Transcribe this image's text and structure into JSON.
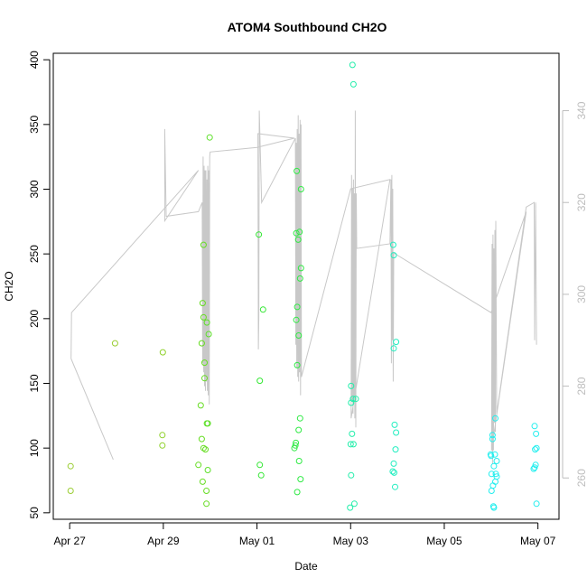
{
  "chart_data": {
    "type": "scatter",
    "title": "ATOM4 Southbound CH2O",
    "xlabel": "Date",
    "ylabel": "CH2O",
    "x_tick_labels": [
      "Apr 27",
      "Apr 29",
      "May 01",
      "May 03",
      "May 05",
      "May 07"
    ],
    "x_tick_values": [
      0,
      2,
      4,
      6,
      8,
      10
    ],
    "xlim": [
      -0.35,
      10.45
    ],
    "ylim": [
      45,
      405
    ],
    "y_ticks": [
      50,
      100,
      150,
      200,
      250,
      300,
      350,
      400
    ],
    "right_axis": {
      "ylim": [
        251.0,
        352.5
      ],
      "ticks": [
        260,
        280,
        300,
        320,
        340
      ],
      "color": "#bdbdbd"
    },
    "points": [
      {
        "x": 0.02,
        "y": 86,
        "color": "#9acd32"
      },
      {
        "x": 0.02,
        "y": 67,
        "color": "#9acd32"
      },
      {
        "x": 0.97,
        "y": 181,
        "color": "#9acd32"
      },
      {
        "x": 1.99,
        "y": 174,
        "color": "#8fd12a"
      },
      {
        "x": 1.98,
        "y": 110,
        "color": "#8fd12a"
      },
      {
        "x": 1.98,
        "y": 102,
        "color": "#8fd12a"
      },
      {
        "x": 2.75,
        "y": 87,
        "color": "#66dd22"
      },
      {
        "x": 2.8,
        "y": 133,
        "color": "#66dd22"
      },
      {
        "x": 2.82,
        "y": 107,
        "color": "#66dd22"
      },
      {
        "x": 2.82,
        "y": 181,
        "color": "#66dd22"
      },
      {
        "x": 2.84,
        "y": 212,
        "color": "#66dd22"
      },
      {
        "x": 2.86,
        "y": 257,
        "color": "#66dd22"
      },
      {
        "x": 2.86,
        "y": 201,
        "color": "#66dd22"
      },
      {
        "x": 2.86,
        "y": 100,
        "color": "#66dd22"
      },
      {
        "x": 2.84,
        "y": 74,
        "color": "#66dd22"
      },
      {
        "x": 2.88,
        "y": 166,
        "color": "#66dd22"
      },
      {
        "x": 2.88,
        "y": 154,
        "color": "#66dd22"
      },
      {
        "x": 2.9,
        "y": 99,
        "color": "#66dd22"
      },
      {
        "x": 2.92,
        "y": 67,
        "color": "#66dd22"
      },
      {
        "x": 2.92,
        "y": 57,
        "color": "#66dd22"
      },
      {
        "x": 2.93,
        "y": 197,
        "color": "#5ee02a"
      },
      {
        "x": 2.93,
        "y": 119,
        "color": "#5ee02a"
      },
      {
        "x": 2.95,
        "y": 119,
        "color": "#5ee02a"
      },
      {
        "x": 2.95,
        "y": 83,
        "color": "#5ee02a"
      },
      {
        "x": 2.97,
        "y": 188,
        "color": "#5ee02a"
      },
      {
        "x": 2.99,
        "y": 340,
        "color": "#5ee02a"
      },
      {
        "x": 4.04,
        "y": 265,
        "color": "#33e733"
      },
      {
        "x": 4.06,
        "y": 87,
        "color": "#33e733"
      },
      {
        "x": 4.06,
        "y": 152,
        "color": "#33e733"
      },
      {
        "x": 4.09,
        "y": 79,
        "color": "#33e733"
      },
      {
        "x": 4.13,
        "y": 207,
        "color": "#33e733"
      },
      {
        "x": 4.8,
        "y": 100,
        "color": "#2fea44"
      },
      {
        "x": 4.82,
        "y": 102,
        "color": "#2fea44"
      },
      {
        "x": 4.83,
        "y": 104,
        "color": "#2fea44"
      },
      {
        "x": 4.84,
        "y": 199,
        "color": "#2fea44"
      },
      {
        "x": 4.84,
        "y": 266,
        "color": "#2fea44"
      },
      {
        "x": 4.85,
        "y": 314,
        "color": "#2fea44"
      },
      {
        "x": 4.86,
        "y": 209,
        "color": "#2fea44"
      },
      {
        "x": 4.86,
        "y": 164,
        "color": "#2fea44"
      },
      {
        "x": 4.86,
        "y": 66,
        "color": "#2fea44"
      },
      {
        "x": 4.88,
        "y": 261,
        "color": "#2fea44"
      },
      {
        "x": 4.89,
        "y": 187,
        "color": "#2fea44"
      },
      {
        "x": 4.89,
        "y": 114,
        "color": "#2fea44"
      },
      {
        "x": 4.9,
        "y": 90,
        "color": "#2fea44"
      },
      {
        "x": 4.91,
        "y": 267,
        "color": "#2fea44"
      },
      {
        "x": 4.92,
        "y": 231,
        "color": "#2fea44"
      },
      {
        "x": 4.92,
        "y": 123,
        "color": "#2fea44"
      },
      {
        "x": 4.93,
        "y": 76,
        "color": "#2fea44"
      },
      {
        "x": 4.94,
        "y": 300,
        "color": "#2fea44"
      },
      {
        "x": 4.94,
        "y": 239,
        "color": "#2fea44"
      },
      {
        "x": 5.99,
        "y": 54,
        "color": "#22eeaa"
      },
      {
        "x": 6.0,
        "y": 103,
        "color": "#22eeaa"
      },
      {
        "x": 6.01,
        "y": 148,
        "color": "#22eeaa"
      },
      {
        "x": 6.01,
        "y": 135,
        "color": "#22eeaa"
      },
      {
        "x": 6.01,
        "y": 79,
        "color": "#22eeaa"
      },
      {
        "x": 6.03,
        "y": 111,
        "color": "#22eeaa"
      },
      {
        "x": 6.04,
        "y": 396,
        "color": "#22eeaa"
      },
      {
        "x": 6.05,
        "y": 138,
        "color": "#22eeaa"
      },
      {
        "x": 6.06,
        "y": 381,
        "color": "#22eeaa"
      },
      {
        "x": 6.06,
        "y": 103,
        "color": "#22eeaa"
      },
      {
        "x": 6.08,
        "y": 57,
        "color": "#22eeaa"
      },
      {
        "x": 6.11,
        "y": 138,
        "color": "#22eeaa"
      },
      {
        "x": 6.9,
        "y": 82,
        "color": "#22eec0"
      },
      {
        "x": 6.91,
        "y": 257,
        "color": "#22eec0"
      },
      {
        "x": 6.92,
        "y": 249,
        "color": "#22eec0"
      },
      {
        "x": 6.92,
        "y": 177,
        "color": "#22eec0"
      },
      {
        "x": 6.92,
        "y": 88,
        "color": "#22eec0"
      },
      {
        "x": 6.93,
        "y": 81,
        "color": "#22eec0"
      },
      {
        "x": 6.94,
        "y": 118,
        "color": "#22eec0"
      },
      {
        "x": 6.95,
        "y": 70,
        "color": "#22eec0"
      },
      {
        "x": 6.96,
        "y": 99,
        "color": "#22eec0"
      },
      {
        "x": 6.97,
        "y": 182,
        "color": "#22eec0"
      },
      {
        "x": 6.97,
        "y": 112,
        "color": "#22eec0"
      },
      {
        "x": 8.99,
        "y": 95,
        "color": "#22eeee"
      },
      {
        "x": 9.0,
        "y": 94,
        "color": "#22eeee"
      },
      {
        "x": 9.01,
        "y": 80,
        "color": "#22eeee"
      },
      {
        "x": 9.01,
        "y": 67,
        "color": "#22eeee"
      },
      {
        "x": 9.03,
        "y": 110,
        "color": "#22eeee"
      },
      {
        "x": 9.03,
        "y": 107,
        "color": "#22eeee"
      },
      {
        "x": 9.04,
        "y": 71,
        "color": "#22eeee"
      },
      {
        "x": 9.05,
        "y": 55,
        "color": "#22eeee"
      },
      {
        "x": 9.06,
        "y": 54,
        "color": "#22eeee"
      },
      {
        "x": 9.06,
        "y": 86,
        "color": "#22eeee"
      },
      {
        "x": 9.08,
        "y": 95,
        "color": "#22eeee"
      },
      {
        "x": 9.09,
        "y": 74,
        "color": "#22eeee"
      },
      {
        "x": 9.09,
        "y": 123,
        "color": "#22eeee"
      },
      {
        "x": 9.1,
        "y": 80,
        "color": "#22eeee"
      },
      {
        "x": 9.12,
        "y": 78,
        "color": "#22eeee"
      },
      {
        "x": 9.12,
        "y": 90,
        "color": "#22eeee"
      },
      {
        "x": 9.91,
        "y": 84,
        "color": "#22eeee"
      },
      {
        "x": 9.93,
        "y": 85,
        "color": "#22eeee"
      },
      {
        "x": 9.93,
        "y": 117,
        "color": "#22eeee"
      },
      {
        "x": 9.94,
        "y": 99,
        "color": "#22eeee"
      },
      {
        "x": 9.95,
        "y": 87,
        "color": "#22eeee"
      },
      {
        "x": 9.96,
        "y": 111,
        "color": "#22eeee"
      },
      {
        "x": 9.97,
        "y": 100,
        "color": "#22eeee"
      },
      {
        "x": 9.97,
        "y": 57,
        "color": "#22eeee"
      }
    ],
    "line_series": {
      "color": "#c8c8c8",
      "axis": "right",
      "x": [
        0.93,
        0.03,
        0.04,
        2.75,
        2.03,
        2.03,
        2.06,
        2.75,
        2.83,
        2.84,
        2.85,
        2.86,
        2.87,
        2.88,
        2.89,
        2.9,
        2.91,
        2.92,
        2.93,
        2.94,
        2.95,
        2.96,
        2.97,
        2.98,
        2.99,
        3.0,
        4.0,
        4.8,
        4.02,
        4.03,
        4.04,
        4.05,
        4.1,
        4.82,
        4.83,
        4.84,
        4.85,
        4.86,
        4.87,
        4.88,
        4.89,
        4.9,
        4.91,
        4.92,
        4.93,
        4.94,
        4.95,
        6.0,
        6.84,
        6.01,
        6.02,
        6.03,
        6.04,
        6.05,
        6.06,
        6.07,
        6.08,
        6.09,
        6.1,
        6.11,
        6.12,
        6.13,
        6.84,
        6.86,
        6.87,
        6.88,
        6.89,
        6.9,
        6.91,
        6.92,
        9.0,
        9.75,
        9.01,
        9.02,
        9.03,
        9.04,
        9.05,
        9.06,
        9.07,
        9.08,
        9.09,
        9.1,
        9.12,
        9.75,
        9.92,
        9.93,
        9.95,
        9.97
      ],
      "y": [
        264,
        286,
        296,
        327,
        316,
        336,
        317,
        318,
        320,
        285,
        330,
        283,
        328,
        280,
        327,
        279,
        327,
        281,
        325,
        279,
        328,
        278,
        327,
        276,
        330,
        331,
        332,
        334,
        335,
        288,
        295,
        340,
        320,
        334,
        289,
        333,
        284,
        336,
        282,
        339,
        281,
        335,
        283,
        338,
        278,
        337,
        282,
        323,
        325,
        273,
        326,
        277,
        323,
        274,
        325,
        277,
        322,
        273,
        340,
        271,
        322,
        310,
        311,
        325,
        285,
        326,
        290,
        323,
        281,
        309,
        296,
        318,
        266,
        311,
        263,
        313,
        266,
        310,
        272,
        314,
        270,
        316,
        274,
        319,
        320,
        290,
        320,
        289
      ]
    }
  }
}
